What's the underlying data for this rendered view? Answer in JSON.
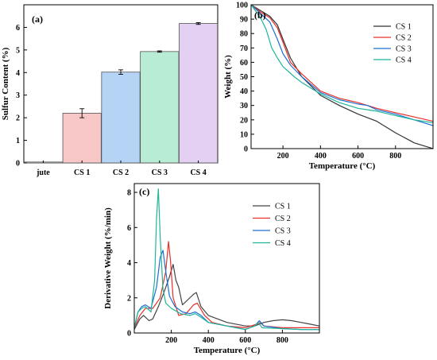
{
  "chart_data": [
    {
      "panel_label": "(a)",
      "type": "bar",
      "categories": [
        "jute",
        "CS 1",
        "CS 2",
        "CS 3",
        "CS 4"
      ],
      "values": [
        0.04,
        2.2,
        4.02,
        4.93,
        6.17
      ],
      "errors": [
        0.0,
        0.2,
        0.1,
        0.03,
        0.04
      ],
      "colors": [
        "#e6e6e6",
        "#f7c6c7",
        "#b5d3f5",
        "#b9ecd4",
        "#e3d0f2"
      ],
      "ylabel": "Sulfur Content (%)",
      "xlabel": "",
      "ylim": [
        0,
        7
      ],
      "yticks": [
        0,
        1,
        2,
        3,
        4,
        5,
        6
      ],
      "grid": false
    },
    {
      "panel_label": "(b)",
      "type": "line",
      "xlabel": "Temperature (°C)",
      "ylabel": "Weight (%)",
      "xlim": [
        30,
        1000
      ],
      "ylim": [
        0,
        100
      ],
      "xticks": [
        200,
        400,
        600,
        800
      ],
      "yticks": [
        0,
        10,
        20,
        30,
        40,
        50,
        60,
        70,
        80,
        90,
        100
      ],
      "legend_position": "top-right",
      "series": [
        {
          "name": "CS 1",
          "color": "#333333",
          "x": [
            30,
            80,
            130,
            170,
            200,
            240,
            300,
            400,
            500,
            600,
            700,
            800,
            900,
            1000
          ],
          "y": [
            100,
            96,
            92,
            86,
            76,
            63,
            50,
            37,
            30,
            24,
            19,
            11,
            4,
            0
          ]
        },
        {
          "name": "CS 2",
          "color": "#e8302a",
          "x": [
            30,
            80,
            130,
            170,
            200,
            240,
            300,
            400,
            500,
            600,
            650,
            700,
            800,
            900,
            1000
          ],
          "y": [
            100,
            95,
            91,
            84,
            74,
            60,
            52,
            40,
            35,
            32,
            30,
            28,
            25,
            22,
            19
          ]
        },
        {
          "name": "CS 3",
          "color": "#1f6fd1",
          "x": [
            30,
            80,
            130,
            170,
            200,
            240,
            300,
            400,
            500,
            600,
            650,
            700,
            800,
            900,
            1000
          ],
          "y": [
            100,
            94,
            88,
            76,
            66,
            58,
            50,
            39,
            34,
            31,
            30,
            27,
            24,
            20,
            16
          ]
        },
        {
          "name": "CS 4",
          "color": "#1fb59a",
          "x": [
            30,
            80,
            110,
            140,
            170,
            200,
            260,
            300,
            400,
            500,
            600,
            650,
            700,
            800,
            900,
            1000
          ],
          "y": [
            100,
            91,
            83,
            70,
            63,
            57,
            50,
            46,
            38,
            32,
            28,
            27,
            26,
            23,
            20,
            18
          ]
        }
      ]
    },
    {
      "panel_label": "(c)",
      "type": "line",
      "xlabel": "Temperature (°C)",
      "ylabel": "Derivative Weight (%/min)",
      "xlim": [
        0,
        1000
      ],
      "ylim": [
        0,
        8.5
      ],
      "xticks": [
        200,
        400,
        600,
        800
      ],
      "yticks": [
        0,
        2,
        4,
        6,
        8
      ],
      "legend_position": "top-right",
      "series": [
        {
          "name": "CS 1",
          "color": "#444444",
          "x": [
            0,
            30,
            50,
            80,
            100,
            130,
            160,
            190,
            210,
            225,
            240,
            260,
            290,
            320,
            335,
            360,
            400,
            500,
            600,
            650,
            700,
            750,
            800,
            850,
            900,
            950,
            1000
          ],
          "y": [
            0.2,
            0.8,
            1.0,
            0.7,
            0.8,
            1.5,
            2.3,
            3.2,
            3.9,
            3.0,
            2.6,
            1.6,
            1.9,
            2.2,
            2.3,
            1.5,
            1.0,
            0.6,
            0.4,
            0.4,
            0.6,
            0.7,
            0.75,
            0.7,
            0.6,
            0.5,
            0.4
          ]
        },
        {
          "name": "CS 2",
          "color": "#e8302a",
          "x": [
            0,
            30,
            60,
            100,
            140,
            170,
            185,
            195,
            210,
            240,
            280,
            320,
            340,
            380,
            420,
            500,
            600,
            660,
            680,
            700,
            800,
            900,
            1000
          ],
          "y": [
            0.3,
            1.0,
            1.4,
            1.4,
            2.0,
            3.5,
            5.2,
            4.2,
            2.0,
            1.0,
            1.1,
            1.6,
            1.7,
            1.0,
            0.6,
            0.4,
            0.3,
            0.5,
            0.6,
            0.4,
            0.3,
            0.3,
            0.3
          ]
        },
        {
          "name": "CS 3",
          "color": "#1f6fd1",
          "x": [
            0,
            20,
            40,
            60,
            90,
            120,
            140,
            155,
            170,
            190,
            220,
            260,
            300,
            330,
            360,
            400,
            500,
            600,
            650,
            675,
            700,
            800,
            900,
            1000
          ],
          "y": [
            0.3,
            1.2,
            1.5,
            1.6,
            1.4,
            2.6,
            4.3,
            4.7,
            3.5,
            2.1,
            1.5,
            1.2,
            1.1,
            1.2,
            1.0,
            0.6,
            0.4,
            0.2,
            0.4,
            0.7,
            0.4,
            0.25,
            0.2,
            0.2
          ]
        },
        {
          "name": "CS 4",
          "color": "#1fb59a",
          "x": [
            0,
            20,
            40,
            60,
            90,
            110,
            120,
            130,
            140,
            155,
            170,
            200,
            250,
            300,
            330,
            360,
            400,
            500,
            600,
            650,
            670,
            690,
            800,
            900,
            1000
          ],
          "y": [
            0.3,
            1.2,
            1.4,
            1.5,
            1.2,
            3.0,
            6.5,
            8.2,
            5.5,
            2.5,
            1.7,
            1.4,
            1.1,
            1.0,
            1.1,
            0.9,
            0.6,
            0.4,
            0.2,
            0.4,
            0.6,
            0.3,
            0.25,
            0.2,
            0.2
          ]
        }
      ]
    }
  ]
}
